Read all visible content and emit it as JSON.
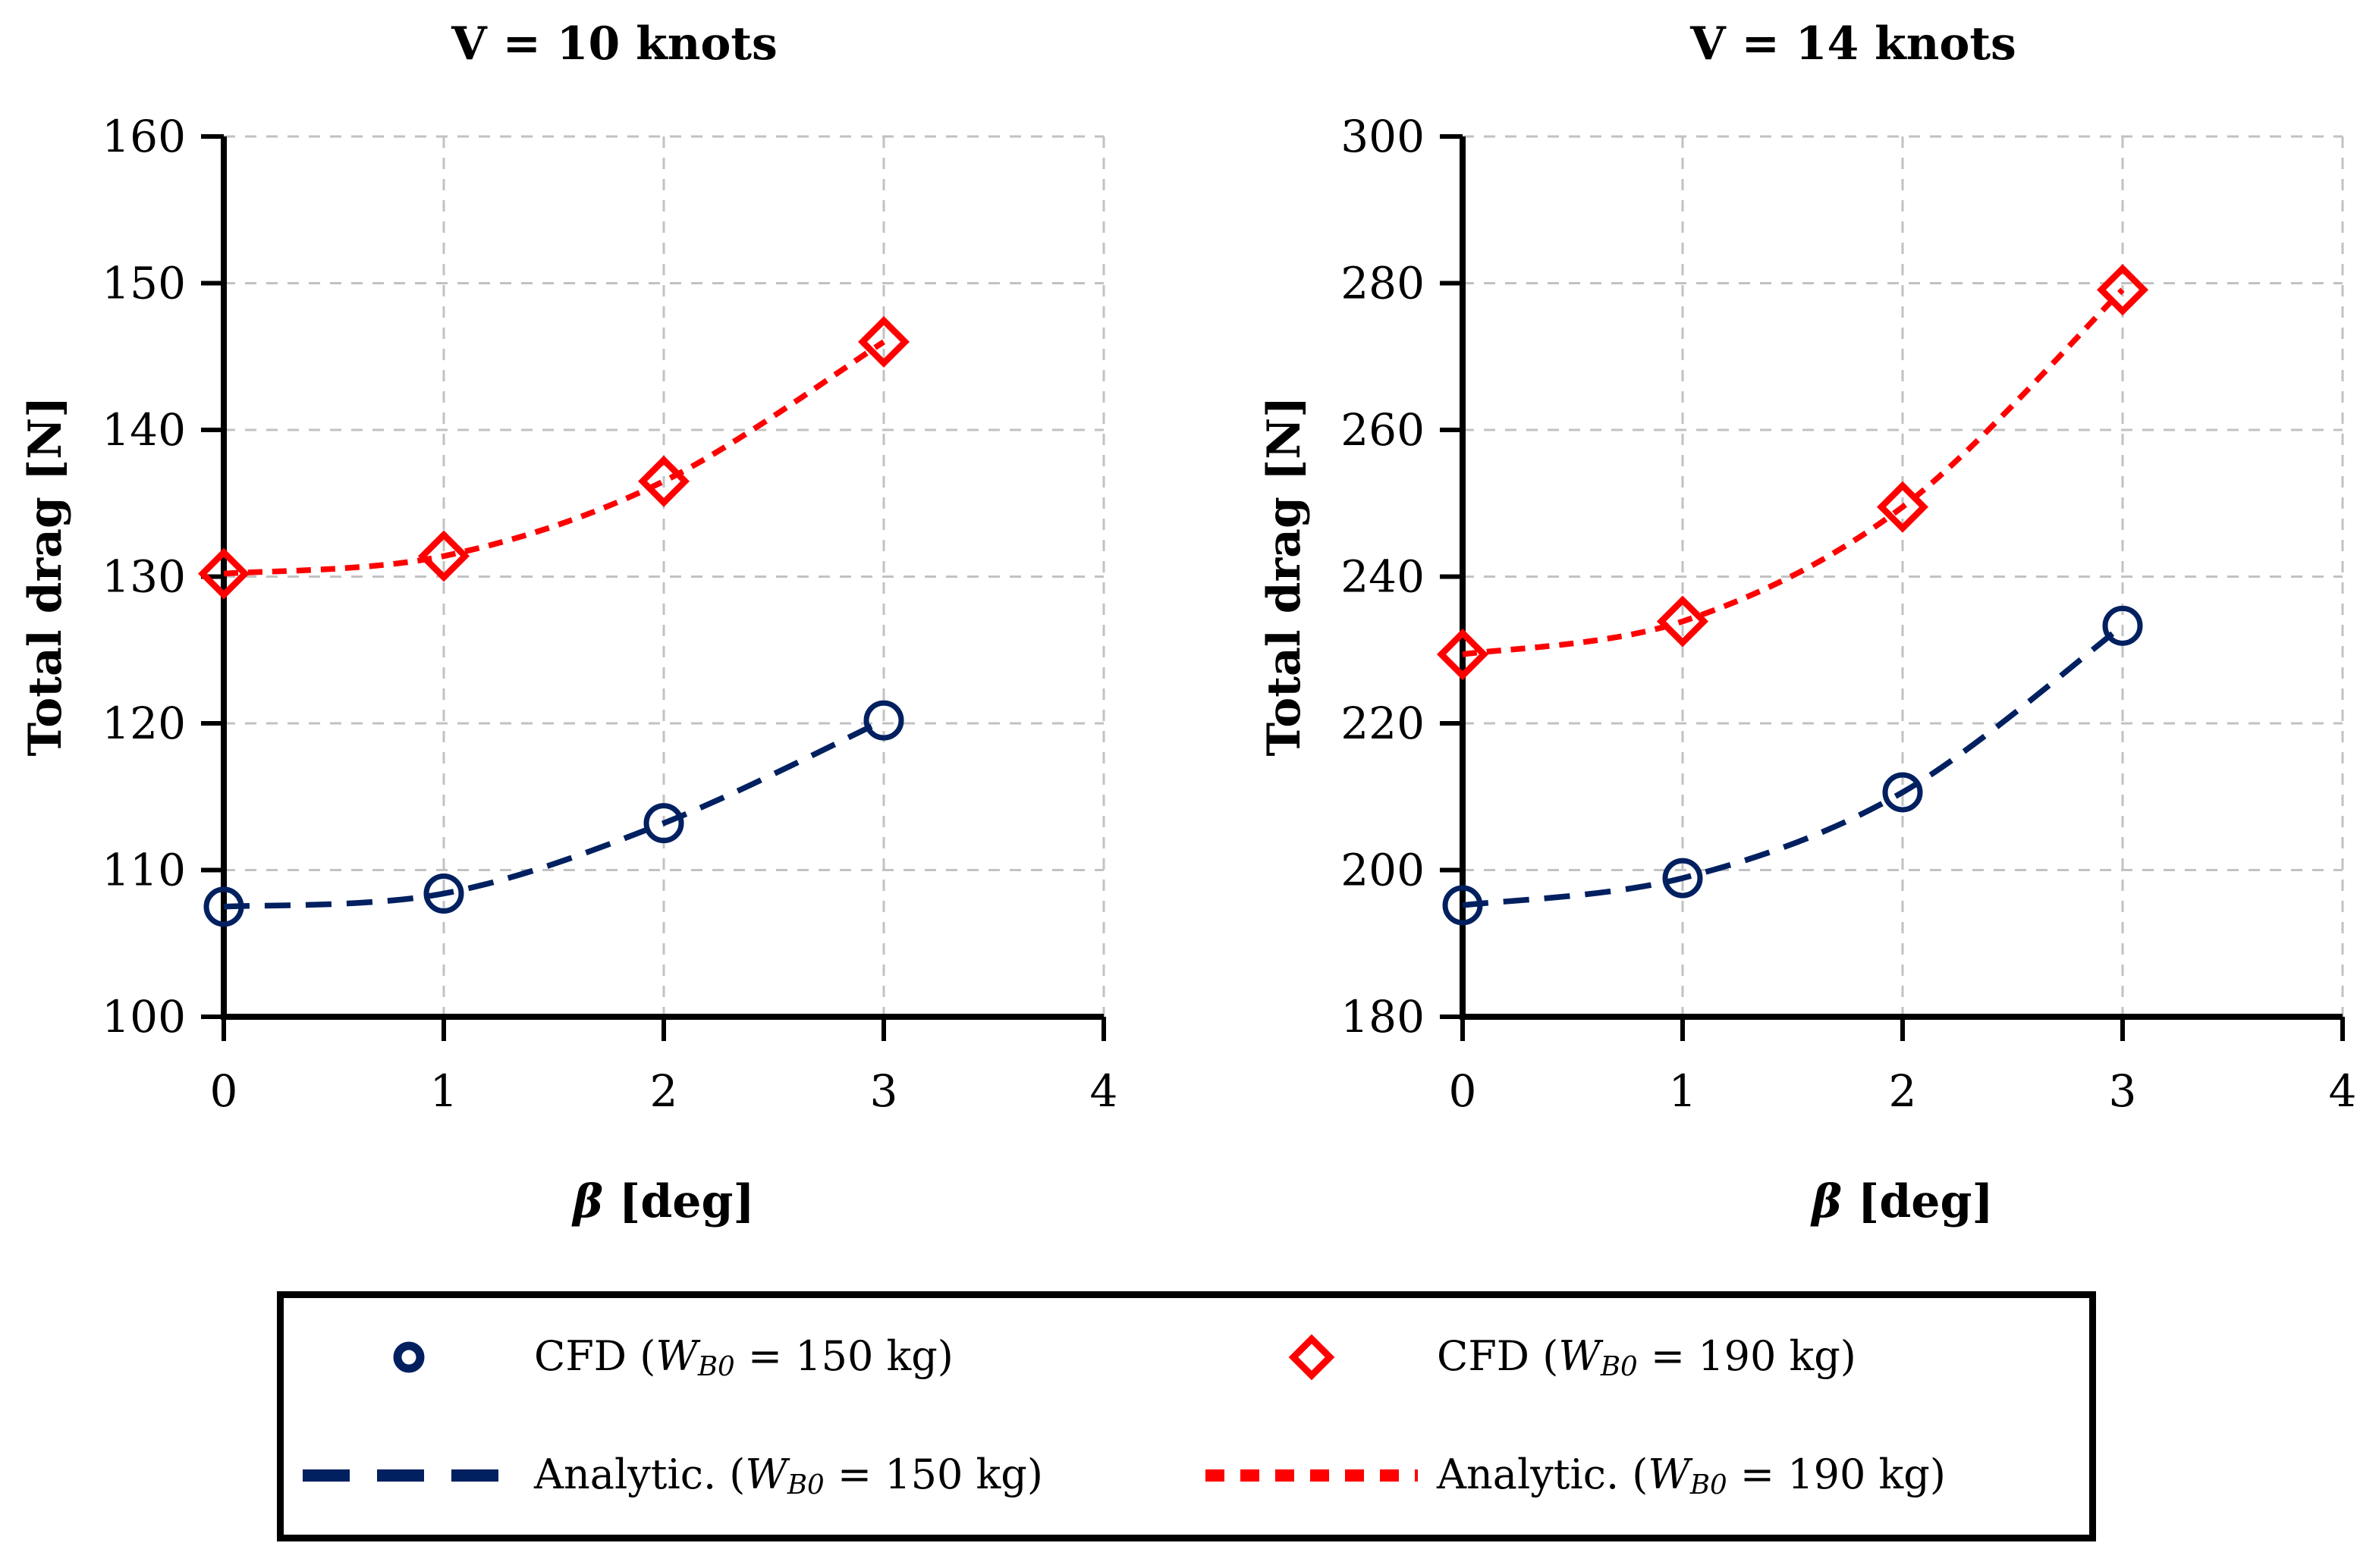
{
  "style": {
    "navy": "#002060",
    "red": "#FF0000",
    "grid_color": "#C2C2C2",
    "axis_color": "#000000",
    "background": "#FFFFFF"
  },
  "chart_data": [
    {
      "type": "line",
      "title": "V = 10 knots",
      "ylabel": "Total drag [N]",
      "xlabel": "β [deg]",
      "xlabel_symbol": "β",
      "xlabel_unit": " [deg]",
      "xlim": [
        0,
        4
      ],
      "ylim": [
        100,
        160
      ],
      "xticks": [
        0,
        1,
        2,
        3,
        4
      ],
      "yticks": [
        100,
        110,
        120,
        130,
        140,
        150,
        160
      ],
      "grid": true,
      "legend_position": "bottom",
      "x": [
        0,
        1,
        2,
        3
      ],
      "series": [
        {
          "name": "CFD / Analytic. (WB0 = 150 kg)",
          "color": "#002060",
          "marker": "circle",
          "dash": [
            34,
            20
          ],
          "values": [
            107.5,
            108.4,
            113.2,
            120.2
          ]
        },
        {
          "name": "CFD / Analytic. (WB0 = 190 kg)",
          "color": "#FF0000",
          "marker": "diamond",
          "dash": [
            19,
            13
          ],
          "values": [
            130.2,
            131.4,
            136.5,
            146.0
          ]
        }
      ]
    },
    {
      "type": "line",
      "title": "V = 14 knots",
      "ylabel": "Total drag [N]",
      "xlabel": "β [deg]",
      "xlabel_symbol": "β",
      "xlabel_unit": " [deg]",
      "xlim": [
        0,
        4
      ],
      "ylim": [
        180,
        300
      ],
      "xticks": [
        0,
        1,
        2,
        3,
        4
      ],
      "yticks": [
        180,
        200,
        220,
        240,
        260,
        280,
        300
      ],
      "grid": true,
      "legend_position": "bottom",
      "x": [
        0,
        1,
        2,
        3
      ],
      "series": [
        {
          "name": "CFD / Analytic. (WB0 = 150 kg)",
          "color": "#002060",
          "marker": "circle",
          "dash": [
            34,
            20
          ],
          "values": [
            195.2,
            198.9,
            210.6,
            233.3
          ]
        },
        {
          "name": "CFD / Analytic. (WB0 = 190 kg)",
          "color": "#FF0000",
          "marker": "diamond",
          "dash": [
            19,
            13
          ],
          "values": [
            229.4,
            233.9,
            249.5,
            279.1
          ]
        }
      ]
    }
  ],
  "legend": {
    "items": [
      {
        "kind": "marker",
        "marker": "circle",
        "color": "#002060",
        "prefix": "CFD (",
        "wsym": "W",
        "wsub": "B0",
        "rest": " = 150 kg)",
        "label_full": "CFD (WB0 = 150 kg)"
      },
      {
        "kind": "marker",
        "marker": "diamond",
        "color": "#FF0000",
        "prefix": "CFD (",
        "wsym": "W",
        "wsub": "B0",
        "rest": " = 190 kg)",
        "label_full": "CFD (WB0 = 190 kg)"
      },
      {
        "kind": "line",
        "dasharray": [
          62,
          36
        ],
        "color": "#002060",
        "prefix": "Analytic. (",
        "wsym": "W",
        "wsub": "B0",
        "rest": " = 150 kg)",
        "label_full": "Analytic. (WB0 = 150 kg)"
      },
      {
        "kind": "line",
        "dasharray": [
          25,
          21
        ],
        "color": "#FF0000",
        "prefix": "Analytic. (",
        "wsym": "W",
        "wsub": "B0",
        "rest": " = 190 kg)",
        "label_full": "Analytic. (WB0 = 190 kg)"
      }
    ]
  }
}
